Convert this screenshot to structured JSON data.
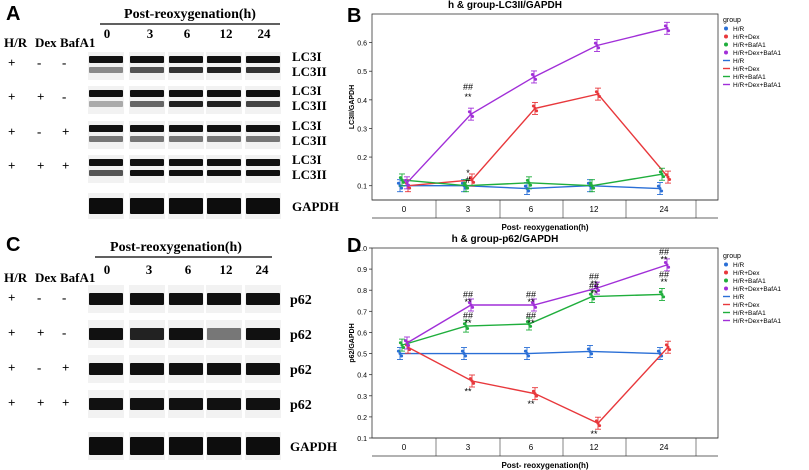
{
  "panels": {
    "A": {
      "letter": "A",
      "header_title": "Post-reoxygenation(h)",
      "timepoints": [
        "0",
        "3",
        "6",
        "12",
        "24"
      ],
      "condition_headers": [
        "H/R",
        "Dex",
        "BafA1"
      ],
      "rows": [
        {
          "signs": [
            "+",
            "-",
            "-"
          ],
          "labels": [
            "LC3I",
            "LC3II"
          ]
        },
        {
          "signs": [
            "+",
            "+",
            "-"
          ],
          "labels": [
            "LC3I",
            "LC3II"
          ]
        },
        {
          "signs": [
            "+",
            "-",
            "+"
          ],
          "labels": [
            "LC3I",
            "LC3II"
          ]
        },
        {
          "signs": [
            "+",
            "+",
            "+"
          ],
          "labels": [
            "LC3I",
            "LC3II"
          ]
        }
      ],
      "loading_label": "GAPDH"
    },
    "C": {
      "letter": "C",
      "header_title": "Post-reoxygenation(h)",
      "timepoints": [
        "0",
        "3",
        "6",
        "12",
        "24"
      ],
      "condition_headers": [
        "H/R",
        "Dex",
        "BafA1"
      ],
      "rows": [
        {
          "signs": [
            "+",
            "-",
            "-"
          ],
          "label": "p62"
        },
        {
          "signs": [
            "+",
            "+",
            "-"
          ],
          "label": "p62"
        },
        {
          "signs": [
            "+",
            "-",
            "+"
          ],
          "label": "p62"
        },
        {
          "signs": [
            "+",
            "+",
            "+"
          ],
          "label": "p62"
        }
      ],
      "loading_label": "GAPDH"
    }
  },
  "colors": {
    "H/R": "#2a6fd6",
    "H/R+Dex": "#e8383c",
    "H/R+BafA1": "#1fae3c",
    "H/R+Dex+BafA1": "#a12fd8"
  },
  "chart_data": [
    {
      "panel": "B",
      "letter": "B",
      "type": "line",
      "title": "h & group-LC3II/GAPDH",
      "xlabel": "Post- reoxygenation(h)",
      "ylabel": "LC3II/GAPDH",
      "categories": [
        "0",
        "3",
        "6",
        "12",
        "24"
      ],
      "ylim": [
        0.05,
        0.7
      ],
      "yticks": [
        0.1,
        0.2,
        0.3,
        0.4,
        0.5,
        0.6
      ],
      "legend_title": "group",
      "legend_entries": [
        "H/R",
        "H/R+Dex",
        "H/R+BafA1",
        "H/R+Dex+BafA1",
        "H/R",
        "H/R+Dex",
        "H/R+BafA1",
        "H/R+Dex+BafA1"
      ],
      "series": [
        {
          "name": "H/R",
          "values": [
            0.1,
            0.1,
            0.09,
            0.1,
            0.09
          ]
        },
        {
          "name": "H/R+Dex",
          "values": [
            0.1,
            0.12,
            0.37,
            0.42,
            0.13
          ]
        },
        {
          "name": "H/R+BafA1",
          "values": [
            0.12,
            0.1,
            0.11,
            0.1,
            0.14
          ]
        },
        {
          "name": "H/R+Dex+BafA1",
          "values": [
            0.11,
            0.35,
            0.48,
            0.59,
            0.65
          ]
        }
      ],
      "annotations": [
        {
          "text": "*",
          "category": "3",
          "y": 0.145
        },
        {
          "text": "#",
          "category": "3",
          "y": 0.12
        },
        {
          "text": "##",
          "category": "3",
          "y": 0.445
        },
        {
          "text": "**",
          "category": "3",
          "y": 0.41
        }
      ]
    },
    {
      "panel": "D",
      "letter": "D",
      "type": "line",
      "title": "h & group-p62/GAPDH",
      "xlabel": "Post- reoxygenation(h)",
      "ylabel": "p62/GAPDH",
      "categories": [
        "0",
        "3",
        "6",
        "12",
        "24"
      ],
      "ylim": [
        0.1,
        1.0
      ],
      "yticks": [
        0.1,
        0.2,
        0.3,
        0.4,
        0.5,
        0.6,
        0.7,
        0.8,
        0.9,
        1.0
      ],
      "legend_title": "group",
      "legend_entries": [
        "H/R",
        "H/R+Dex",
        "H/R+BafA1",
        "H/R+Dex+BafA1",
        "H/R",
        "H/R+Dex",
        "H/R+BafA1",
        "H/R+Dex+BafA1"
      ],
      "series": [
        {
          "name": "H/R",
          "values": [
            0.5,
            0.5,
            0.5,
            0.51,
            0.5
          ]
        },
        {
          "name": "H/R+Dex",
          "values": [
            0.53,
            0.37,
            0.31,
            0.17,
            0.53
          ]
        },
        {
          "name": "H/R+BafA1",
          "values": [
            0.54,
            0.63,
            0.64,
            0.77,
            0.78
          ]
        },
        {
          "name": "H/R+Dex+BafA1",
          "values": [
            0.55,
            0.73,
            0.73,
            0.81,
            0.92
          ]
        }
      ],
      "annotations": [
        {
          "text": "##",
          "category": "3",
          "y": 0.78
        },
        {
          "text": "**",
          "category": "3",
          "y": 0.745
        },
        {
          "text": "##",
          "category": "3",
          "y": 0.68
        },
        {
          "text": "**",
          "category": "3",
          "y": 0.645
        },
        {
          "text": "**",
          "category": "3",
          "y": 0.32
        },
        {
          "text": "##",
          "category": "6",
          "y": 0.78
        },
        {
          "text": "**",
          "category": "6",
          "y": 0.745
        },
        {
          "text": "##",
          "category": "6",
          "y": 0.68
        },
        {
          "text": "**",
          "category": "6",
          "y": 0.645
        },
        {
          "text": "**",
          "category": "6",
          "y": 0.26
        },
        {
          "text": "##",
          "category": "12",
          "y": 0.865
        },
        {
          "text": "**",
          "category": "12",
          "y": 0.83
        },
        {
          "text": "##",
          "category": "12",
          "y": 0.82
        },
        {
          "text": "**",
          "category": "12",
          "y": 0.785
        },
        {
          "text": "**",
          "category": "12",
          "y": 0.12
        },
        {
          "text": "##",
          "category": "24",
          "y": 0.98
        },
        {
          "text": "**",
          "category": "24",
          "y": 0.945
        },
        {
          "text": "##",
          "category": "24",
          "y": 0.875
        },
        {
          "text": "**",
          "category": "24",
          "y": 0.84
        }
      ]
    }
  ]
}
